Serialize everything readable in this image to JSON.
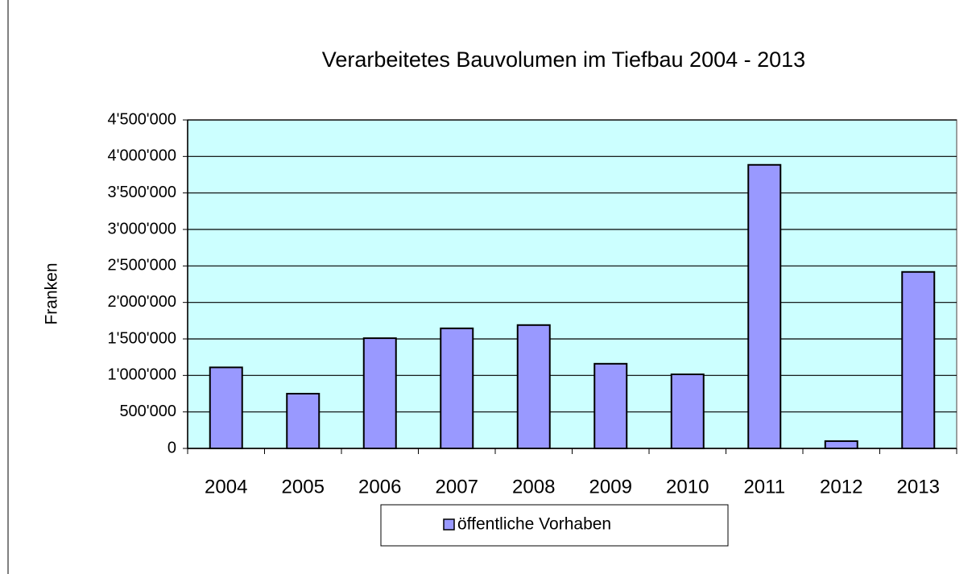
{
  "chart_data": {
    "type": "bar",
    "title": "Verarbeitetes Bauvolumen im Tiefbau 2004 - 2013",
    "y_label": "Franken",
    "categories": [
      "2004",
      "2005",
      "2006",
      "2007",
      "2008",
      "2009",
      "2010",
      "2011",
      "2012",
      "2013"
    ],
    "series": [
      {
        "name": "öffentliche Vorhaben",
        "color": "#9999ff",
        "values": [
          1110000,
          750000,
          1510000,
          1645000,
          1690000,
          1160000,
          1015000,
          3885000,
          100000,
          2418000
        ]
      }
    ],
    "ylim": [
      0,
      4500000
    ],
    "yticks": [
      0,
      {
        "value": 500000,
        "label": "500'000"
      },
      {
        "value": 1000000,
        "label": "1'000'000"
      },
      {
        "value": 1500000,
        "label": "1'500'000"
      },
      {
        "value": 2000000,
        "label": "2'000'000"
      },
      {
        "value": 2500000,
        "label": "2'500'000"
      },
      {
        "value": 3000000,
        "label": "3'000'000"
      },
      {
        "value": 3500000,
        "label": "3'500'000"
      },
      {
        "value": 4000000,
        "label": "4'000'000"
      },
      {
        "value": 4500000,
        "label": "4'500'000"
      }
    ],
    "grid": true,
    "plot_background": "#ccffff",
    "legend": "bottom"
  }
}
